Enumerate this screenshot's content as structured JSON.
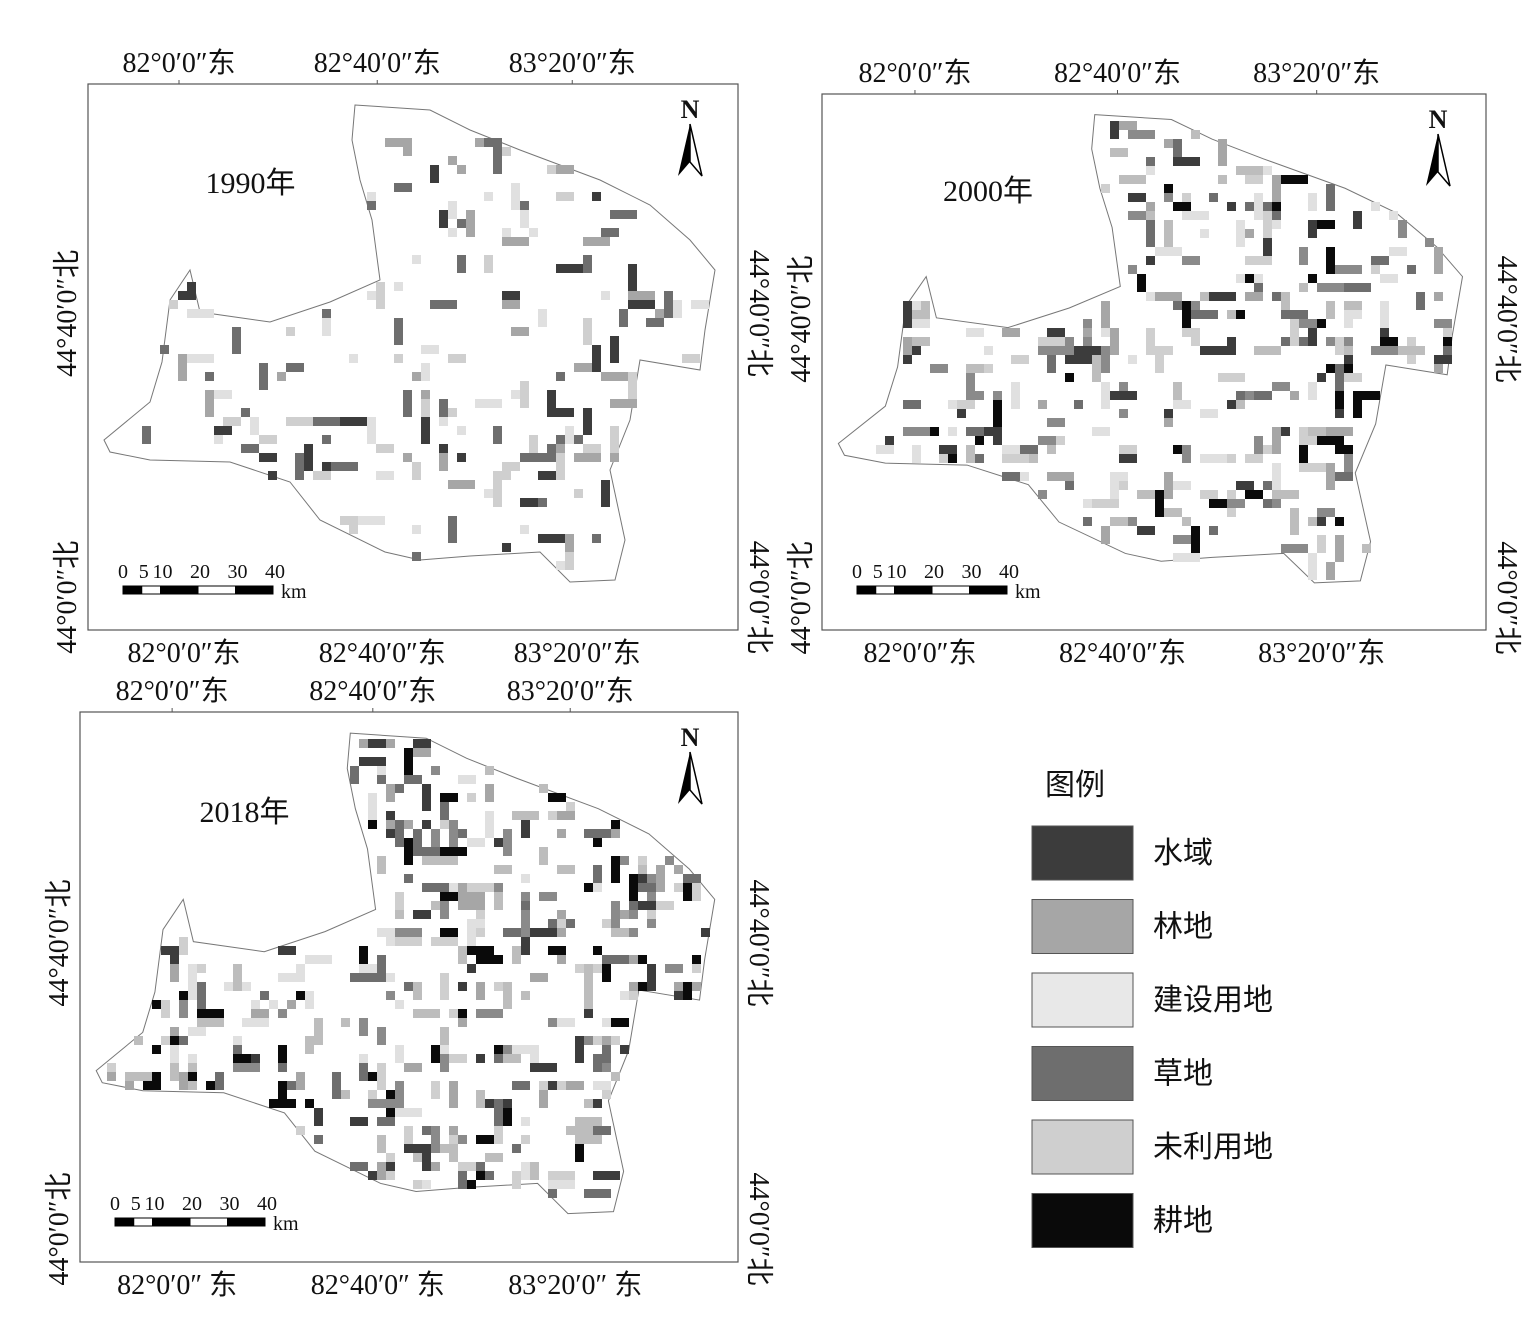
{
  "maps": [
    {
      "year_label": "1990年",
      "top_ticks": [
        "82°0′0″东",
        "82°40′0″东",
        "83°20′0″东"
      ],
      "bottom_ticks": [
        "82°0′0″东",
        "82°40′0″东",
        "83°20′0″东"
      ],
      "left_ticks": [
        "44°40′0″北",
        "44°0′0″北"
      ],
      "right_ticks": [
        "44°40′0″北",
        "44°0′0″北"
      ],
      "north": "N",
      "scale_labels": [
        "0",
        "5",
        "10",
        "20",
        "30",
        "40"
      ],
      "scale_unit": "km"
    },
    {
      "year_label": "2000年",
      "top_ticks": [
        "82°0′0″东",
        "82°40′0″东",
        "83°20′0″东"
      ],
      "bottom_ticks": [
        "82°0′0″东",
        "82°40′0″东",
        "83°20′0″东"
      ],
      "left_ticks": [
        "44°40′0″北",
        "44°0′0″北"
      ],
      "right_ticks": [
        "44°40′0″北",
        "44°0′0″北"
      ],
      "north": "N",
      "scale_labels": [
        "0",
        "5",
        "10",
        "20",
        "30",
        "40"
      ],
      "scale_unit": "km"
    },
    {
      "year_label": "2018年",
      "top_ticks": [
        "82°0′0″东",
        "82°40′0″东",
        "83°20′0″东"
      ],
      "bottom_ticks": [
        "82°0′0″ 东",
        "82°40′0″ 东",
        "83°20′0″ 东"
      ],
      "left_ticks": [
        "44°40′0″北",
        "44°0′0″北"
      ],
      "right_ticks": [
        "44°40′0″北",
        "44°0′0″北"
      ],
      "north": "N",
      "scale_labels": [
        "0",
        "5",
        "10",
        "20",
        "30",
        "40"
      ],
      "scale_unit": "km"
    }
  ],
  "legend": {
    "title": "图例",
    "items": [
      {
        "label": "水域",
        "color": "#3c3c3c"
      },
      {
        "label": "林地",
        "color": "#a6a6a6"
      },
      {
        "label": "建设用地",
        "color": "#e8e8e8"
      },
      {
        "label": "草地",
        "color": "#6e6e6e"
      },
      {
        "label": "未利用地",
        "color": "#cfcfcf"
      },
      {
        "label": "耕地",
        "color": "#0a0a0a"
      }
    ]
  }
}
